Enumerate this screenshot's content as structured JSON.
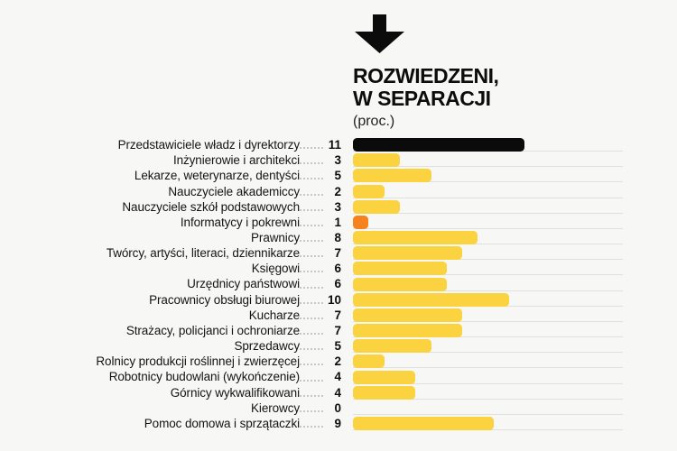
{
  "header": {
    "title_line1": "ROZWIEDZENI,",
    "title_line2": "W SEPARACJI",
    "subtitle": "(proc.)"
  },
  "icons": {
    "pointer": "down-arrow"
  },
  "colors": {
    "background": "#f7f7f5",
    "black": "#0b0b0b",
    "yellow": "#fbd23f",
    "orange": "#f5821f",
    "baseline": "#e1e1db",
    "leader_dots": "#c8c8c3",
    "text": "#141414"
  },
  "chart_data": {
    "type": "bar",
    "orientation": "horizontal",
    "title": "ROZWIEDZENI, W SEPARACJI",
    "unit_label": "(proc.)",
    "xlim": [
      0,
      16.5
    ],
    "legend": "none",
    "grid": "row baselines only",
    "rows": [
      {
        "label": "Przedstawiciele władz i dyrektorzy",
        "value": 11,
        "color": "black"
      },
      {
        "label": "Inżynierowie i architekci",
        "value": 3,
        "color": "yellow"
      },
      {
        "label": "Lekarze, weterynarze, dentyści",
        "value": 5,
        "color": "yellow"
      },
      {
        "label": "Nauczyciele akademiccy",
        "value": 2,
        "color": "yellow"
      },
      {
        "label": "Nauczyciele szkół podstawowych",
        "value": 3,
        "color": "yellow"
      },
      {
        "label": "Informatycy i pokrewni",
        "value": 1,
        "color": "orange"
      },
      {
        "label": "Prawnicy",
        "value": 8,
        "color": "yellow"
      },
      {
        "label": "Twórcy, artyści, literaci, dziennikarze",
        "value": 7,
        "color": "yellow"
      },
      {
        "label": "Księgowi",
        "value": 6,
        "color": "yellow"
      },
      {
        "label": "Urzędnicy państwowi",
        "value": 6,
        "color": "yellow"
      },
      {
        "label": "Pracownicy obsługi biurowej",
        "value": 10,
        "color": "yellow"
      },
      {
        "label": "Kucharze",
        "value": 7,
        "color": "yellow"
      },
      {
        "label": "Strażacy, policjanci i ochroniarze",
        "value": 7,
        "color": "yellow"
      },
      {
        "label": "Sprzedawcy",
        "value": 5,
        "color": "yellow"
      },
      {
        "label": "Rolnicy produkcji roślinnej i zwierzęcej",
        "value": 2,
        "color": "yellow"
      },
      {
        "label": "Robotnicy budowlani (wykończenie)",
        "value": 4,
        "color": "yellow"
      },
      {
        "label": "Górnicy wykwalifikowani",
        "value": 4,
        "color": "yellow"
      },
      {
        "label": "Kierowcy",
        "value": 0,
        "color": "yellow"
      },
      {
        "label": "Pomoc domowa i sprzątaczki",
        "value": 9,
        "color": "yellow"
      }
    ]
  }
}
